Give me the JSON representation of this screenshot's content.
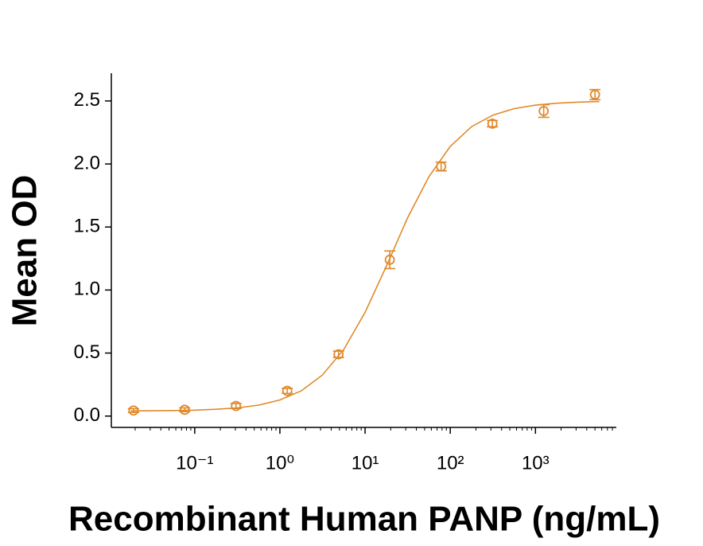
{
  "chart_data": {
    "type": "scatter",
    "x_label": "Recombinant Human PANP (ng/mL)",
    "y_label": "Mean OD",
    "xscale": "log",
    "xlim": [
      0.0105,
      8900
    ],
    "ylim": [
      -0.09,
      2.72
    ],
    "xticks": [
      {
        "value": 0.1,
        "label": "10⁻¹"
      },
      {
        "value": 1,
        "label": "10⁰"
      },
      {
        "value": 10,
        "label": "10¹"
      },
      {
        "value": 100,
        "label": "10²"
      },
      {
        "value": 1000,
        "label": "10³"
      }
    ],
    "xminorticks": [
      0.02,
      0.03,
      0.04,
      0.05,
      0.06,
      0.07,
      0.08,
      0.09,
      0.2,
      0.3,
      0.4,
      0.5,
      0.6,
      0.7,
      0.8,
      0.9,
      2,
      3,
      4,
      5,
      6,
      7,
      8,
      9,
      20,
      30,
      40,
      50,
      60,
      70,
      80,
      90,
      200,
      300,
      400,
      500,
      600,
      700,
      800,
      900,
      2000,
      3000,
      4000,
      5000,
      6000,
      7000,
      8000
    ],
    "yticks": [
      {
        "value": 0,
        "label": "0.0"
      },
      0.5,
      {
        "value": 1,
        "label": "1.0"
      },
      1.5,
      {
        "value": 2,
        "label": "2.0"
      },
      2.5
    ],
    "grid": false,
    "series": [
      {
        "color": "#e0892a",
        "x": [
          0.0191,
          0.0763,
          0.305,
          1.22,
          4.88,
          19.5,
          78.1,
          312.5,
          1250,
          5000
        ],
        "values": [
          0.044,
          0.05,
          0.08,
          0.2,
          0.49,
          1.24,
          1.98,
          2.32,
          2.42,
          2.55
        ],
        "errors": [
          0.015,
          0.015,
          0.02,
          0.02,
          0.025,
          0.07,
          0.035,
          0.025,
          0.05,
          0.04
        ]
      }
    ],
    "fit": {
      "color": "#e0892a",
      "x": [
        0.0178,
        0.0316,
        0.0562,
        0.1,
        0.178,
        0.316,
        0.562,
        1,
        1.78,
        3.16,
        5.62,
        10,
        17.8,
        31.6,
        56.2,
        100,
        178,
        316,
        562,
        1000,
        1778,
        3162,
        5623
      ],
      "values": [
        0.041,
        0.042,
        0.044,
        0.047,
        0.054,
        0.065,
        0.087,
        0.128,
        0.2,
        0.326,
        0.528,
        0.823,
        1.19,
        1.574,
        1.9,
        2.14,
        2.296,
        2.387,
        2.439,
        2.467,
        2.482,
        2.491,
        2.495
      ]
    }
  }
}
